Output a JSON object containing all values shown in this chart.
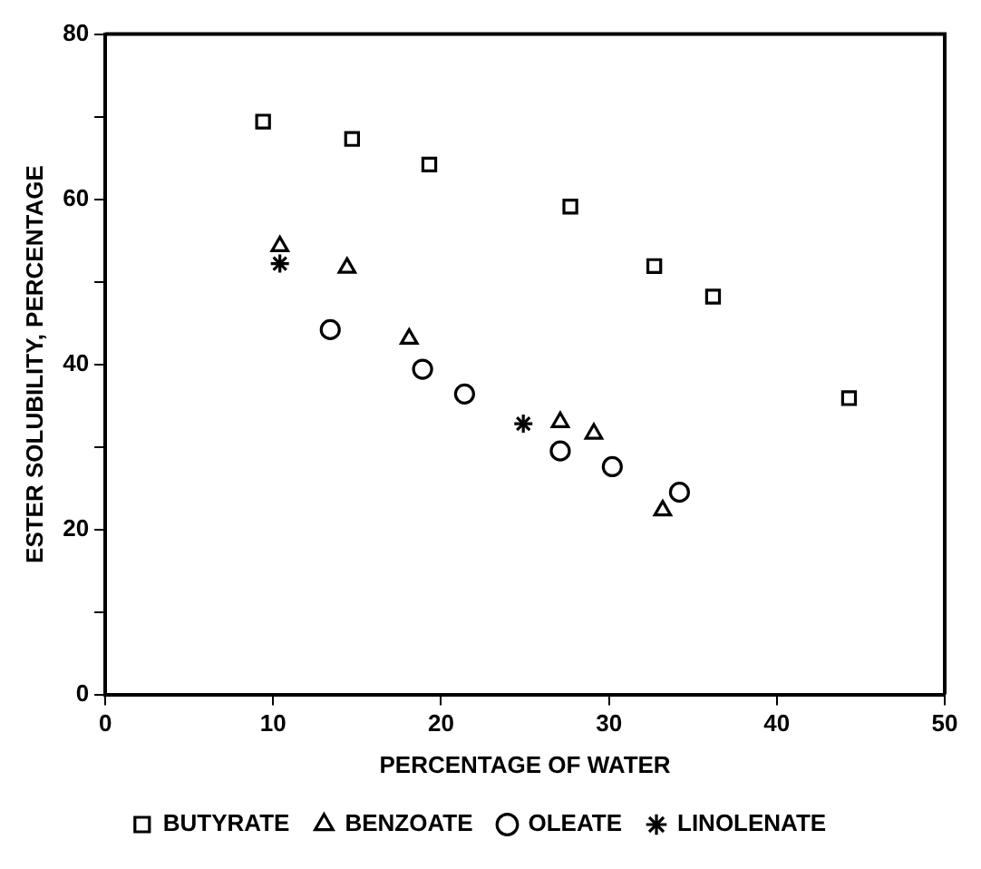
{
  "chart_data": {
    "type": "scatter",
    "xlabel": "PERCENTAGE OF WATER",
    "ylabel": "ESTER SOLUBILITY, PERCENTAGE",
    "xlim": [
      0,
      50
    ],
    "xticks": [
      0,
      10,
      20,
      30,
      40,
      50
    ],
    "ylim": [
      0,
      80
    ],
    "yticks": [
      0,
      {
        "value": 10,
        "label": null
      },
      20,
      {
        "value": 30,
        "label": null
      },
      40,
      {
        "value": 50,
        "label": null
      },
      60,
      {
        "value": 70,
        "label": null
      },
      80
    ],
    "grid": false,
    "legend": "bottom",
    "series": [
      {
        "name": "BUTYRATE",
        "color": "#000000",
        "marker": "square",
        "x": [
          9.4,
          14.7,
          19.3,
          27.7,
          32.7,
          36.2,
          44.3
        ],
        "values": [
          69.4,
          67.3,
          64.2,
          59.1,
          51.9,
          48.2,
          35.9
        ]
      },
      {
        "name": "BENZOATE",
        "color": "#000000",
        "marker": "triangle",
        "x": [
          10.4,
          14.4,
          18.1,
          27.1,
          29.1,
          33.2
        ],
        "values": [
          54.3,
          51.7,
          43.1,
          33.0,
          31.6,
          22.3
        ]
      },
      {
        "name": "OLEATE",
        "color": "#000000",
        "marker": "circle",
        "x": [
          13.4,
          18.9,
          21.4,
          27.1,
          30.2,
          34.2
        ],
        "values": [
          44.2,
          39.4,
          36.4,
          29.5,
          27.6,
          24.5
        ]
      },
      {
        "name": "LINOLENATE",
        "color": "#000000",
        "marker": "cross",
        "x": [
          10.4,
          24.9
        ],
        "values": [
          52.2,
          32.8
        ]
      }
    ]
  }
}
